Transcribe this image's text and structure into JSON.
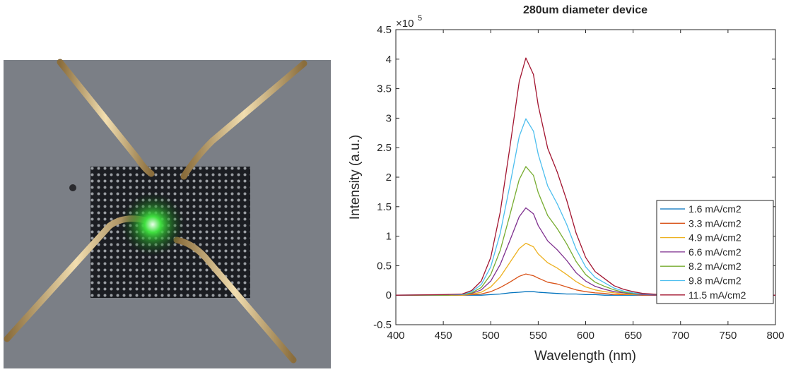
{
  "chart_data": {
    "type": "line",
    "title": "280um diameter device",
    "xlabel": "Wavelength (nm)",
    "ylabel": "Intensity (a.u.)",
    "y_multiplier": {
      "base": "×10",
      "exponent": "5"
    },
    "x": [
      400,
      450,
      470,
      480,
      490,
      500,
      510,
      520,
      530,
      537,
      545,
      550,
      560,
      570,
      580,
      590,
      600,
      610,
      620,
      630,
      640,
      650,
      660,
      680,
      700,
      750,
      800
    ],
    "series": [
      {
        "name": "1.6 mA/cm2",
        "color": "#0072BD",
        "values": [
          0,
          0,
          0,
          0,
          0,
          0.01,
          0.02,
          0.04,
          0.05,
          0.06,
          0.06,
          0.05,
          0.04,
          0.03,
          0.02,
          0.02,
          0.01,
          0.01,
          0,
          0,
          0,
          0,
          0,
          0,
          0,
          0,
          0
        ]
      },
      {
        "name": "3.3 mA/cm2",
        "color": "#D95319",
        "values": [
          0,
          0,
          0,
          0.01,
          0.02,
          0.06,
          0.13,
          0.22,
          0.32,
          0.36,
          0.33,
          0.29,
          0.22,
          0.19,
          0.14,
          0.09,
          0.06,
          0.04,
          0.03,
          0.01,
          0.01,
          0.01,
          0,
          0,
          0,
          0,
          0
        ]
      },
      {
        "name": "4.9 mA/cm2",
        "color": "#EDB120",
        "values": [
          0,
          0,
          0,
          0.02,
          0.05,
          0.14,
          0.31,
          0.55,
          0.79,
          0.88,
          0.82,
          0.7,
          0.55,
          0.46,
          0.35,
          0.23,
          0.14,
          0.09,
          0.06,
          0.04,
          0.02,
          0.01,
          0.01,
          0,
          0,
          0,
          0
        ]
      },
      {
        "name": "6.6 mA/cm2",
        "color": "#7E2F8E",
        "values": [
          0,
          0,
          0.01,
          0.03,
          0.09,
          0.24,
          0.52,
          0.92,
          1.33,
          1.48,
          1.38,
          1.18,
          0.92,
          0.77,
          0.59,
          0.38,
          0.24,
          0.15,
          0.1,
          0.06,
          0.04,
          0.02,
          0.01,
          0,
          0,
          0,
          0
        ]
      },
      {
        "name": "8.2 mA/cm2",
        "color": "#77AC30",
        "values": [
          0,
          0,
          0.01,
          0.04,
          0.13,
          0.35,
          0.76,
          1.35,
          1.96,
          2.18,
          2.03,
          1.74,
          1.35,
          1.13,
          0.87,
          0.57,
          0.35,
          0.22,
          0.15,
          0.09,
          0.05,
          0.03,
          0.02,
          0.01,
          0,
          0,
          0
        ]
      },
      {
        "name": "9.8 mA/cm2",
        "color": "#4DBEEE",
        "values": [
          0,
          0.01,
          0.01,
          0.06,
          0.18,
          0.48,
          1.05,
          1.85,
          2.69,
          2.99,
          2.78,
          2.39,
          1.85,
          1.55,
          1.2,
          0.78,
          0.48,
          0.3,
          0.21,
          0.12,
          0.07,
          0.04,
          0.02,
          0.01,
          0,
          0,
          0
        ]
      },
      {
        "name": "11.5 mA/cm2",
        "color": "#A2142F",
        "values": [
          0,
          0.01,
          0.02,
          0.08,
          0.24,
          0.64,
          1.41,
          2.49,
          3.62,
          4.02,
          3.74,
          3.22,
          2.49,
          2.09,
          1.61,
          1.05,
          0.64,
          0.4,
          0.28,
          0.16,
          0.1,
          0.06,
          0.03,
          0.01,
          0,
          0,
          0
        ]
      }
    ],
    "xlim": [
      400,
      800
    ],
    "xticks": [
      400,
      450,
      500,
      550,
      600,
      650,
      700,
      750,
      800
    ],
    "ylim": [
      -0.5,
      4.5
    ],
    "yticks": [
      -0.5,
      0,
      0.5,
      1,
      1.5,
      2,
      2.5,
      3,
      3.5,
      4,
      4.5
    ],
    "legend": "lower right",
    "grid": false
  }
}
